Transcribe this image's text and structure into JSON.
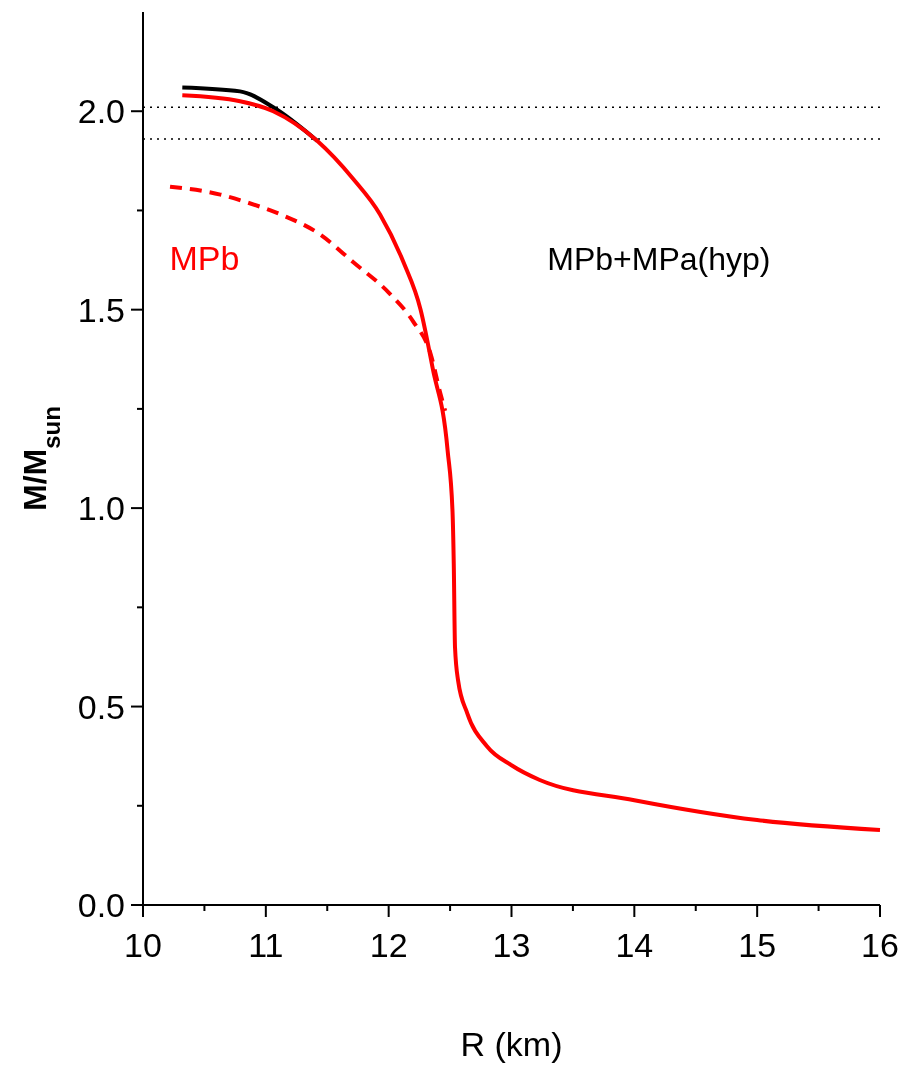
{
  "chart_data": {
    "type": "line",
    "xlabel": "R (km)",
    "ylabel": "M/M$_{sun}$",
    "xlim": [
      10,
      16
    ],
    "ylim": [
      0,
      2.25
    ],
    "xticks": [
      10,
      {
        "value": 10.5,
        "label": null
      },
      11,
      {
        "value": 11.5,
        "label": null
      },
      12,
      {
        "value": 12.5,
        "label": null
      },
      13,
      {
        "value": 13.5,
        "label": null
      },
      14,
      {
        "value": 14.5,
        "label": null
      },
      15,
      {
        "value": 15.5,
        "label": null
      },
      16
    ],
    "yticks": [
      {
        "value": 0,
        "label": "0.0"
      },
      {
        "value": 0.25,
        "label": null
      },
      0.5,
      {
        "value": 0.75,
        "label": null
      },
      {
        "value": 1,
        "label": "1.0"
      },
      {
        "value": 1.25,
        "label": null
      },
      1.5,
      {
        "value": 1.75,
        "label": null
      },
      {
        "value": 2,
        "label": "2.0"
      }
    ],
    "grid": false,
    "annotations": [
      "MPb+MPa(hyp)"
    ],
    "ref_lines": [
      {
        "axis": "y",
        "value": 2.01,
        "color": "#000000",
        "line_style": "dotted"
      },
      {
        "axis": "y",
        "value": 1.93,
        "color": "#000000",
        "line_style": "dotted"
      }
    ],
    "series": [
      {
        "color": "#000000",
        "line_style": "solid",
        "x": [
          10.32,
          10.79,
          11.06,
          11.42
        ],
        "values": [
          2.06,
          2.05,
          2.01,
          1.925
        ]
      },
      {
        "color": "#ff0000",
        "line_style": "solid",
        "x": [
          10.32,
          10.79,
          11.06,
          11.42,
          11.71,
          11.93,
          12.12,
          12.26,
          12.36,
          12.48,
          12.52,
          12.53,
          12.54,
          12.565,
          12.64,
          12.8,
          13,
          13.23,
          14,
          15,
          16
        ],
        "values": [
          2.04,
          2.025,
          2.0,
          1.925,
          1.83,
          1.74,
          1.62,
          1.5,
          1.35,
          1.145,
          0.99,
          0.86,
          0.65,
          0.566,
          0.483,
          0.4,
          0.352,
          0.315,
          0.264,
          0.214,
          0.189
        ]
      },
      {
        "name": "MPb",
        "color": "#ff0000",
        "line_style": "dashed",
        "x": [
          10.22,
          10.63,
          10.85,
          11.12,
          11.44,
          11.71,
          12.01,
          12.2,
          12.34,
          12.42,
          12.46
        ],
        "values": [
          1.81,
          1.79,
          1.77,
          1.74,
          1.69,
          1.62,
          1.54,
          1.47,
          1.39,
          1.29,
          1.245
        ]
      }
    ]
  }
}
